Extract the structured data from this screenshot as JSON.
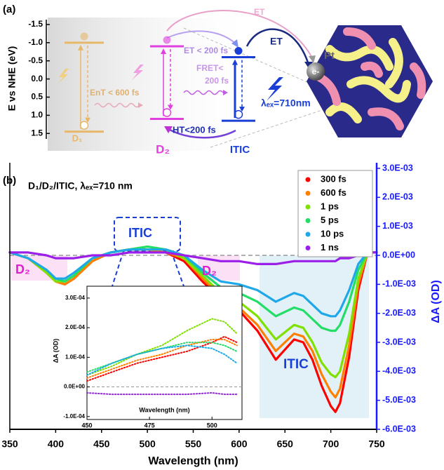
{
  "panel_a": {
    "label": "(a)",
    "y_label": "E vs NHE (eV)",
    "ylim": [
      -1.75,
      1.65
    ],
    "yticks": [
      -1.5,
      {
        "value": -1,
        "label": "-1.0"
      },
      -0.5,
      {
        "value": 0,
        "label": "0.0"
      },
      0.5,
      {
        "value": 1,
        "label": "1.0"
      },
      1.5
    ],
    "levels": [
      {
        "name": "D₁",
        "color": "#e8b86a",
        "lumo": -1.0,
        "homo": 1.45
      },
      {
        "name": "D₂",
        "color": "#e040e0",
        "lumo": -0.9,
        "homo": 1.1
      },
      {
        "name": "ITIC",
        "color": "#1a3fd6",
        "lumo": -0.6,
        "homo": 1.15
      }
    ],
    "annotations": {
      "et_top": "ET",
      "et_d2": "ET < 200 fs",
      "et_itic": "ET",
      "fret": [
        "FRET<",
        "200 fs"
      ],
      "ent": "EnT < 600 fs",
      "ht": "HT<200 fs",
      "excitation": "λₑₓ=710nm",
      "pt": "Pt",
      "electron": "e-"
    }
  },
  "chart_data": [
    {
      "type": "line",
      "label": "(b)",
      "title": "D₁/D₂/ITIC, λₑₓ=710 nm",
      "x_label": "Wavelength (nm)",
      "y_label": "ΔA (OD)",
      "x": [
        350,
        370,
        390,
        400,
        410,
        420,
        440,
        460,
        480,
        500,
        520,
        540,
        560,
        580,
        600,
        620,
        640,
        660,
        670,
        680,
        690,
        700,
        705,
        710,
        720,
        730,
        740,
        750
      ],
      "xlim": [
        350,
        750
      ],
      "xticks": [
        350,
        400,
        450,
        500,
        550,
        600,
        650,
        700,
        750
      ],
      "ylim": [
        -0.006,
        0.003
      ],
      "yticks": [
        {
          "value": 0.003,
          "label": "3.0E-03"
        },
        {
          "value": 0.002,
          "label": "2.0E-03"
        },
        {
          "value": 0.001,
          "label": "1.0E-03"
        },
        {
          "value": 0,
          "label": "0.0E+00"
        },
        {
          "value": -0.001,
          "label": "-1.0E-03"
        },
        {
          "value": -0.002,
          "label": "-2.0E-03"
        },
        {
          "value": -0.003,
          "label": "-3.0E-03"
        },
        {
          "value": -0.004,
          "label": "-4.0E-03"
        },
        {
          "value": -0.005,
          "label": "-5.0E-03"
        },
        {
          "value": -0.006,
          "label": "-6.0E-03"
        }
      ],
      "legend": "upper right",
      "annotations": [
        "D₂",
        "D₂",
        "ITIC",
        "ITIC"
      ],
      "series": [
        {
          "name": "300 fs",
          "color": "#ff0000",
          "values": [
            0.0001,
            -0.0001,
            -0.0006,
            -0.0009,
            -0.001,
            -0.0008,
            -0.0002,
            0.0001,
            0.0002,
            0.0002,
            0.0001,
            -0.0002,
            -0.0009,
            -0.0015,
            -0.0019,
            -0.0026,
            -0.0036,
            -0.0029,
            -0.003,
            -0.0036,
            -0.0045,
            -0.0052,
            -0.0054,
            -0.0051,
            -0.0035,
            -0.0012,
            0.0001,
            0.0001
          ]
        },
        {
          "name": "600 fs",
          "color": "#ff8000",
          "values": [
            0.0001,
            -0.0001,
            -0.0006,
            -0.0009,
            -0.001,
            -0.0008,
            -0.0002,
            0.0001,
            0.0002,
            0.0002,
            0.0001,
            -0.0001,
            -0.0008,
            -0.0014,
            -0.0018,
            -0.0024,
            -0.0033,
            -0.0027,
            -0.0028,
            -0.0033,
            -0.0041,
            -0.0047,
            -0.0049,
            -0.0046,
            -0.0031,
            -0.001,
            0.0001,
            0.0001
          ]
        },
        {
          "name": "1 ps",
          "color": "#80e000",
          "values": [
            0.0001,
            -0.0001,
            -0.0006,
            -0.0009,
            -0.0009,
            -0.0007,
            -0.0001,
            0.0001,
            0.0002,
            0.0003,
            0.0002,
            -0.0001,
            -0.0007,
            -0.0013,
            -0.0016,
            -0.0021,
            -0.0029,
            -0.0024,
            -0.0025,
            -0.003,
            -0.0037,
            -0.0041,
            -0.0042,
            -0.004,
            -0.0027,
            -0.0008,
            0.0001,
            0.0001
          ]
        },
        {
          "name": "5 ps",
          "color": "#22dd66",
          "values": [
            0.0001,
            -0.0001,
            -0.0005,
            -0.0008,
            -0.0009,
            -0.0007,
            -0.0001,
            0.0001,
            0.0002,
            0.0003,
            0.0002,
            0,
            -0.0006,
            -0.0011,
            -0.0013,
            -0.0016,
            -0.0021,
            -0.0018,
            -0.0019,
            -0.0022,
            -0.0025,
            -0.0026,
            -0.0026,
            -0.0024,
            -0.0016,
            -0.0005,
            0.0001,
            0.0001
          ]
        },
        {
          "name": "10 ps",
          "color": "#1fa8e8",
          "values": [
            0.0001,
            -0.0001,
            -0.0005,
            -0.0008,
            -0.0008,
            -0.0006,
            -0.0001,
            0.0001,
            0.0002,
            0.0002,
            0.0002,
            0,
            -0.0005,
            -0.0009,
            -0.001,
            -0.0012,
            -0.0016,
            -0.0013,
            -0.0014,
            -0.0017,
            -0.002,
            -0.0021,
            -0.0021,
            -0.0019,
            -0.0012,
            -0.0003,
            0.0001,
            0.0001
          ]
        },
        {
          "name": "1 ns",
          "color": "#9b1fe8",
          "values": [
            0.0001,
            0.0001,
            0,
            -0.0001,
            -0.0001,
            -0.0001,
            0,
            0,
            0.0001,
            0.0001,
            0.0001,
            0,
            -0.0001,
            -0.0002,
            -0.0002,
            -0.0003,
            -0.0003,
            -0.0002,
            -0.0002,
            -0.0002,
            -0.0002,
            -0.0002,
            -0.0002,
            -0.0001,
            -0.0001,
            0,
            0.0001,
            0.0001
          ]
        }
      ]
    },
    {
      "type": "line",
      "x_label": "Wavelength (nm)",
      "y_label": "ΔA (OD)",
      "x": [
        450,
        460,
        470,
        480,
        490,
        500,
        505,
        510
      ],
      "xlim": [
        450,
        512
      ],
      "xticks": [
        450,
        475,
        500
      ],
      "ylim": [
        -0.00011,
        0.00034
      ],
      "yticks": [
        {
          "value": 0.0003,
          "label": "3.0E-04"
        },
        {
          "value": 0.0002,
          "label": "2.0E-04"
        },
        {
          "value": 0.0001,
          "label": "1.0E-04"
        },
        {
          "value": 0,
          "label": "0.0E+00"
        },
        {
          "value": -0.0001,
          "label": "-1.0E-04"
        }
      ],
      "series": [
        {
          "color": "#ff0000",
          "values": [
            2e-05,
            5e-05,
            8e-05,
            0.0001,
            0.00012,
            0.00015,
            0.00017,
            0.00015
          ]
        },
        {
          "color": "#ff8000",
          "values": [
            3e-05,
            6e-05,
            9e-05,
            0.00011,
            0.00014,
            0.00016,
            0.00016,
            0.00014
          ]
        },
        {
          "color": "#80e000",
          "values": [
            4e-05,
            7e-05,
            0.00011,
            0.00014,
            0.00019,
            0.00023,
            0.00022,
            0.00018
          ]
        },
        {
          "color": "#22dd66",
          "values": [
            5e-05,
            8e-05,
            0.00011,
            0.00013,
            0.00015,
            0.00015,
            0.00014,
            0.00012
          ]
        },
        {
          "color": "#1fa8e8",
          "values": [
            4e-05,
            8e-05,
            0.00011,
            0.00013,
            0.00014,
            0.00013,
            0.00011,
            8e-05
          ]
        },
        {
          "color": "#9b1fe8",
          "values": [
            -2e-05,
            -2.5e-05,
            -2.5e-05,
            -2.5e-05,
            -2.5e-05,
            -2e-05,
            -2.5e-05,
            -2.5e-05
          ]
        }
      ]
    }
  ]
}
